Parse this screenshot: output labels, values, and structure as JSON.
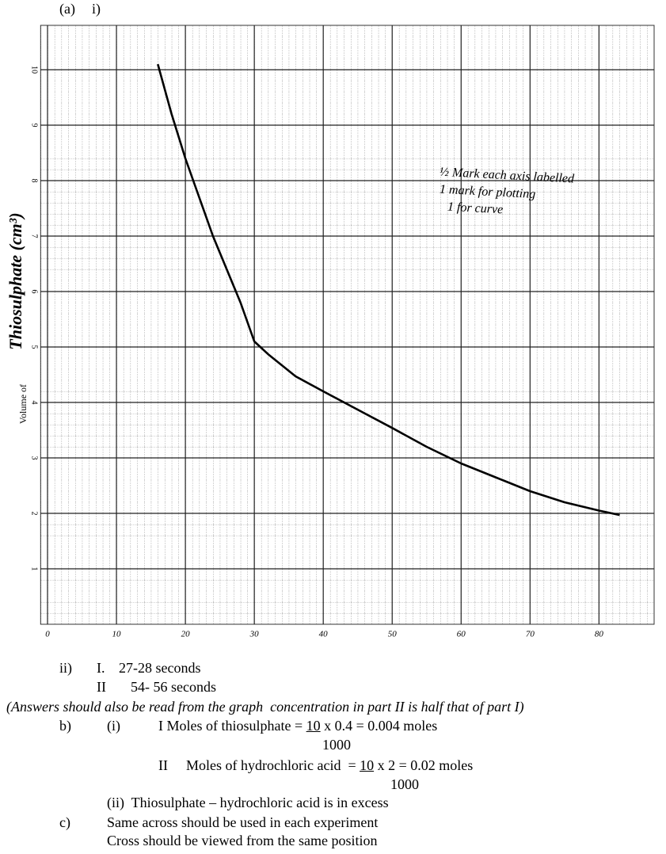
{
  "heading": {
    "a": "(a)",
    "i": "i)"
  },
  "chart_data": {
    "type": "line",
    "ylabel": [
      "Volume of",
      "Thiosulphate (cm³)"
    ],
    "annotations": [
      "½ Mark each axis labelled",
      "1 mark for plotting",
      "1 for curve"
    ],
    "x": [
      16,
      18,
      20,
      22,
      24,
      26,
      28,
      30,
      32,
      36,
      40,
      45,
      50,
      55,
      60,
      65,
      70,
      75,
      80,
      83
    ],
    "series": [
      {
        "color": "#000000",
        "values": [
          10.1,
          9.2,
          8.4,
          7.7,
          7.0,
          6.4,
          5.8,
          5.1,
          4.87,
          4.47,
          4.2,
          3.87,
          3.54,
          3.2,
          2.9,
          2.65,
          2.4,
          2.2,
          2.05,
          1.97
        ]
      }
    ],
    "xlim": [
      -1,
      88
    ],
    "ylim": [
      0,
      10.8
    ],
    "xticks": [
      0,
      10,
      20,
      30,
      40,
      50,
      60,
      70,
      80
    ],
    "yticks": [
      1,
      2,
      3,
      4,
      5,
      6,
      7,
      8,
      9,
      10
    ],
    "grid": true
  },
  "part_ii": {
    "label": "ii)",
    "I": "I.",
    "I_text": "27-28 seconds",
    "II": "II",
    "II_text": "54- 56 seconds"
  },
  "note": "(Answers should also be read from the graph  concentration in part II is half that of part I)",
  "b": {
    "label": "b)",
    "i": "(i)",
    "I_text": "I Moles of thiosulphate = ",
    "I_num": "10",
    "I_rest": " x 0.4 = 0.004 moles",
    "I_den": "1000",
    "II": "II",
    "II_text": "Moles of hydrochloric acid  = ",
    "II_num": "10",
    "II_rest": " x 2 = 0.02 moles",
    "II_den": "1000",
    "ii": "(ii)  Thiosulphate – hydrochloric acid is in excess"
  },
  "c": {
    "label": "c)",
    "lines": [
      "Same across should be used in each experiment",
      "Cross should be viewed from the same position"
    ]
  }
}
